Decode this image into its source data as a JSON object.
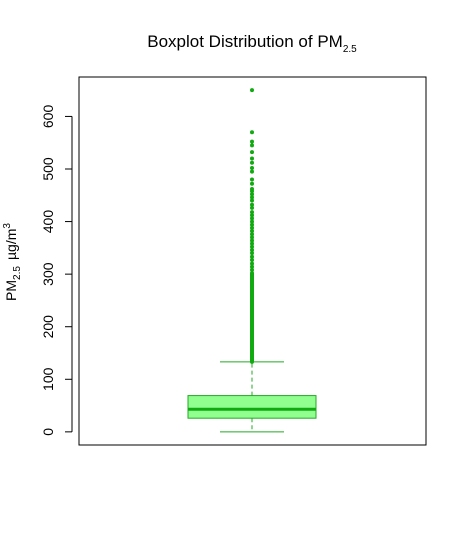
{
  "chart_data": {
    "type": "boxplot",
    "title": {
      "main": "Boxplot Distribution of PM",
      "subscript": "2.5"
    },
    "ylabel": {
      "main": "PM",
      "subscript": "2.5",
      "unit": "µg/m",
      "superscript": "3"
    },
    "xlabel": "",
    "ylim": [
      -25,
      675
    ],
    "y_ticks": [
      0,
      100,
      200,
      300,
      400,
      500,
      600
    ],
    "y_tick_labels": [
      "0",
      "100",
      "200",
      "300",
      "400",
      "500",
      "600"
    ],
    "box": {
      "whisker_low": 0,
      "q1": 26,
      "median": 43,
      "q3": 69,
      "whisker_high": 133
    },
    "outliers_continuous_range": [
      133,
      300
    ],
    "outliers": [
      302,
      308,
      314,
      320,
      327,
      333,
      340,
      346,
      352,
      358,
      364,
      370,
      376,
      382,
      388,
      394,
      400,
      406,
      412,
      418,
      426,
      432,
      440,
      446,
      452,
      458,
      462,
      472,
      480,
      495,
      502,
      512,
      520,
      532,
      545,
      552,
      570,
      650
    ],
    "colors": {
      "box_fill": "#90ff90",
      "box_border": "#22aa22",
      "median": "#11aa11",
      "points": "#11aa11",
      "whisker": "#22aa22",
      "axis": "#000000"
    },
    "grid": false,
    "legend": "none"
  }
}
